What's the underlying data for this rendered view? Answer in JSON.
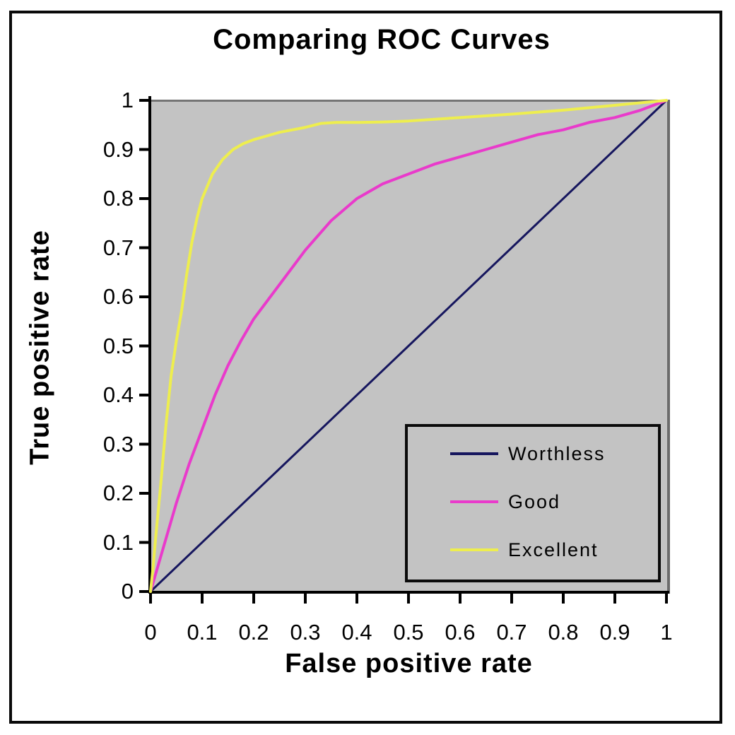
{
  "chart_data": {
    "type": "line",
    "title": "Comparing ROC Curves",
    "xlabel": "False positive rate",
    "ylabel": "True positive rate",
    "xlim": [
      0,
      1
    ],
    "ylim": [
      0,
      1
    ],
    "grid": false,
    "plot_background": "#c3c3c3",
    "axis_color": "#000000",
    "x_ticks": [
      "0",
      "0.1",
      "0.2",
      "0.3",
      "0.4",
      "0.5",
      "0.6",
      "0.7",
      "0.8",
      "0.9",
      "1"
    ],
    "y_ticks": [
      "0",
      "0.1",
      "0.2",
      "0.3",
      "0.4",
      "0.5",
      "0.6",
      "0.7",
      "0.8",
      "0.9",
      "1"
    ],
    "legend": {
      "position": "inside-lower-right",
      "border_color": "#0a0a0a",
      "background": "#c3c3c3"
    },
    "series": [
      {
        "name": "Worthless",
        "color": "#16165e",
        "stroke_width": 3,
        "points": [
          [
            0,
            0
          ],
          [
            0.25,
            0.25
          ],
          [
            0.5,
            0.5
          ],
          [
            0.75,
            0.75
          ],
          [
            1,
            1
          ]
        ]
      },
      {
        "name": "Good",
        "color": "#e93acb",
        "stroke_width": 4,
        "points": [
          [
            0,
            0
          ],
          [
            0.025,
            0.09
          ],
          [
            0.05,
            0.18
          ],
          [
            0.075,
            0.26
          ],
          [
            0.1,
            0.33
          ],
          [
            0.125,
            0.4
          ],
          [
            0.15,
            0.46
          ],
          [
            0.175,
            0.51
          ],
          [
            0.2,
            0.555
          ],
          [
            0.25,
            0.625
          ],
          [
            0.3,
            0.695
          ],
          [
            0.35,
            0.755
          ],
          [
            0.4,
            0.8
          ],
          [
            0.45,
            0.83
          ],
          [
            0.5,
            0.85
          ],
          [
            0.55,
            0.87
          ],
          [
            0.6,
            0.885
          ],
          [
            0.65,
            0.9
          ],
          [
            0.7,
            0.915
          ],
          [
            0.75,
            0.93
          ],
          [
            0.8,
            0.94
          ],
          [
            0.85,
            0.955
          ],
          [
            0.9,
            0.965
          ],
          [
            0.95,
            0.98
          ],
          [
            1,
            1
          ]
        ]
      },
      {
        "name": "Excellent",
        "color": "#eeee4e",
        "stroke_width": 4,
        "points": [
          [
            0,
            0
          ],
          [
            0.005,
            0.05
          ],
          [
            0.01,
            0.11
          ],
          [
            0.02,
            0.22
          ],
          [
            0.03,
            0.34
          ],
          [
            0.04,
            0.44
          ],
          [
            0.05,
            0.51
          ],
          [
            0.06,
            0.57
          ],
          [
            0.07,
            0.645
          ],
          [
            0.08,
            0.71
          ],
          [
            0.09,
            0.76
          ],
          [
            0.1,
            0.8
          ],
          [
            0.11,
            0.825
          ],
          [
            0.12,
            0.85
          ],
          [
            0.14,
            0.88
          ],
          [
            0.16,
            0.9
          ],
          [
            0.18,
            0.912
          ],
          [
            0.2,
            0.92
          ],
          [
            0.25,
            0.935
          ],
          [
            0.3,
            0.945
          ],
          [
            0.33,
            0.953
          ],
          [
            0.36,
            0.955
          ],
          [
            0.4,
            0.955
          ],
          [
            0.45,
            0.956
          ],
          [
            0.5,
            0.958
          ],
          [
            0.6,
            0.965
          ],
          [
            0.7,
            0.972
          ],
          [
            0.8,
            0.98
          ],
          [
            0.9,
            0.99
          ],
          [
            1,
            1
          ]
        ]
      }
    ]
  }
}
